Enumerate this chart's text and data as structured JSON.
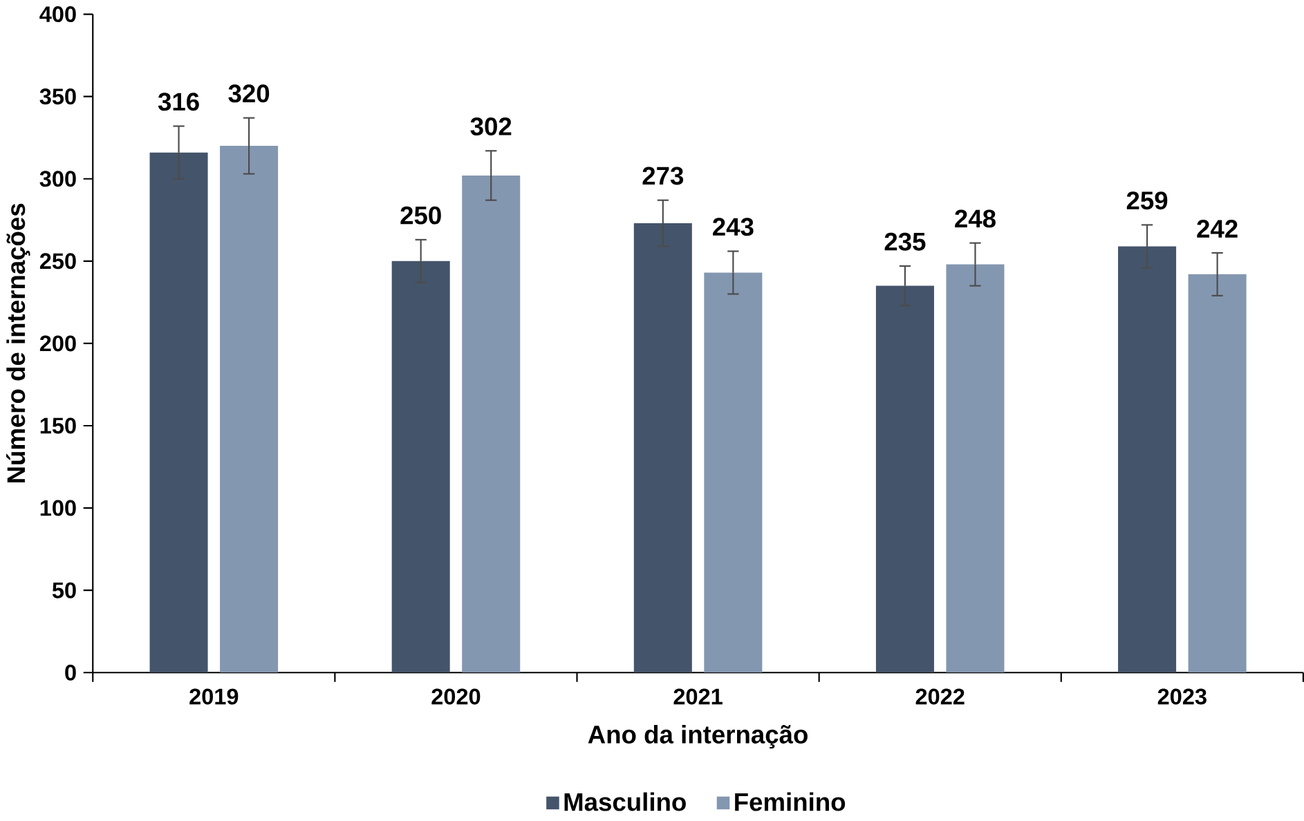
{
  "chart_data": {
    "type": "bar",
    "xlabel": "Ano da internação",
    "ylabel": "Número de internações",
    "categories": [
      "2019",
      "2020",
      "2021",
      "2022",
      "2023"
    ],
    "series": [
      {
        "name": "Masculino",
        "color": "#44546a",
        "values": [
          316,
          250,
          273,
          235,
          259
        ],
        "errors": [
          16,
          13,
          14,
          12,
          13
        ]
      },
      {
        "name": "Feminino",
        "color": "#8497b0",
        "values": [
          320,
          302,
          243,
          248,
          242
        ],
        "errors": [
          17,
          15,
          13,
          13,
          13
        ]
      }
    ],
    "ylim": [
      0,
      400
    ],
    "yticks": [
      0,
      50,
      100,
      150,
      200,
      250,
      300,
      350,
      400
    ],
    "grid": false,
    "legend": "bottom",
    "data_labels": true
  }
}
